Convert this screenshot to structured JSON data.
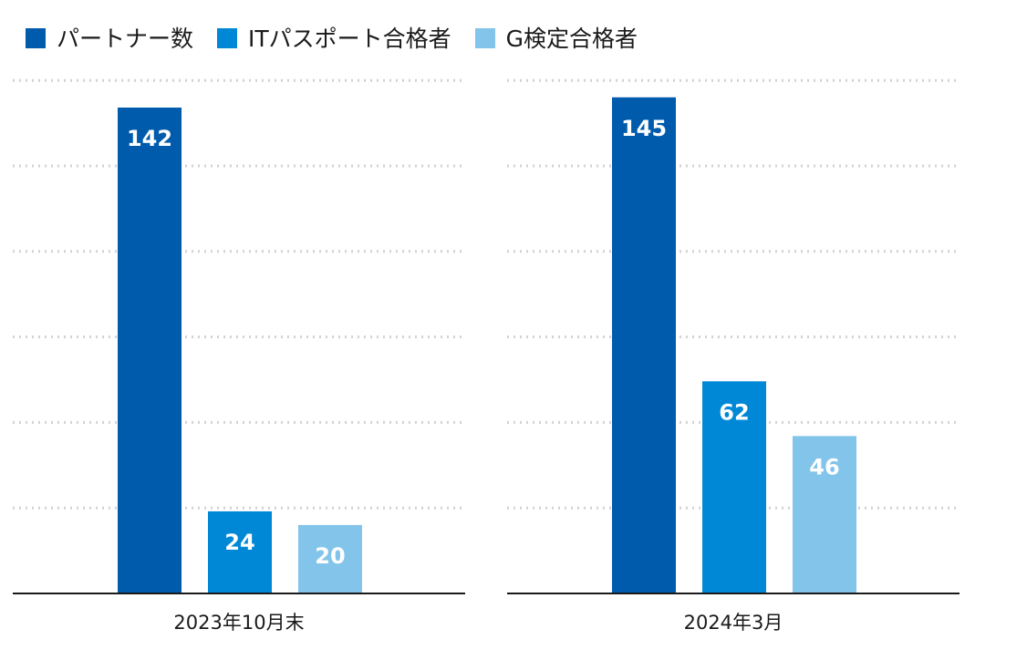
{
  "chart_data": {
    "type": "bar",
    "categories": [
      "2023年10月末",
      "2024年3月"
    ],
    "series": [
      {
        "name": "パートナー数",
        "values": [
          142,
          145
        ],
        "color": "#005bac"
      },
      {
        "name": "ITパスポート合格者",
        "values": [
          24,
          62
        ],
        "color": "#0088d6"
      },
      {
        "name": "G検定合格者",
        "values": [
          20,
          46
        ],
        "color": "#82c4ea"
      }
    ],
    "ylim": [
      0,
      150
    ],
    "grid": true,
    "legend": "top-left",
    "data_labels": true
  }
}
